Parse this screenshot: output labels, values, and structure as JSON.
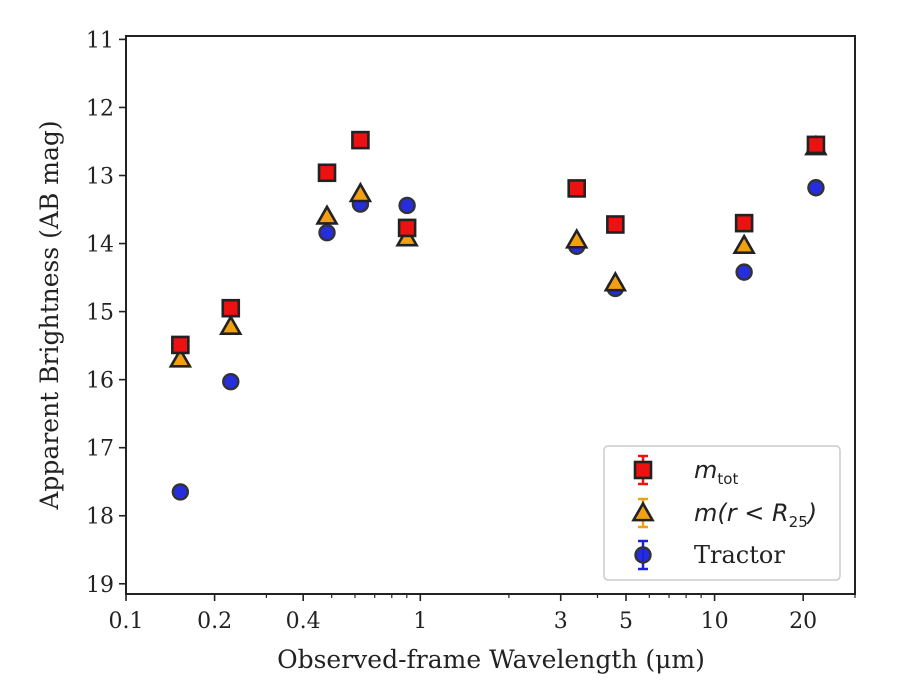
{
  "chart_data": {
    "type": "scatter",
    "xlabel": "Observed-frame Wavelength (μm)",
    "ylabel": "Apparent Brightness (AB mag)",
    "x_scale": "log",
    "xlim": [
      0.1,
      30
    ],
    "ylim": [
      19.15,
      10.95
    ],
    "y_inverted": true,
    "x_ticks": [
      0.1,
      0.2,
      0.4,
      1,
      3,
      5,
      10,
      20
    ],
    "x_tick_labels": [
      "0.1",
      "0.2",
      "0.4",
      "1",
      "3",
      "5",
      "10",
      "20"
    ],
    "y_ticks": [
      11,
      12,
      13,
      14,
      15,
      16,
      17,
      18,
      19
    ],
    "y_tick_labels": [
      "11",
      "12",
      "13",
      "14",
      "15",
      "16",
      "17",
      "18",
      "19"
    ],
    "grid": false,
    "legend_position": "bottom-right",
    "series": [
      {
        "name": "m_tot",
        "marker": "square",
        "color": "#ee1111",
        "points": [
          {
            "x": 0.153,
            "y": 15.49
          },
          {
            "x": 0.227,
            "y": 14.95
          },
          {
            "x": 0.482,
            "y": 12.96
          },
          {
            "x": 0.626,
            "y": 12.48
          },
          {
            "x": 0.902,
            "y": 13.77
          },
          {
            "x": 3.4,
            "y": 13.19
          },
          {
            "x": 4.6,
            "y": 13.72
          },
          {
            "x": 12.6,
            "y": 13.7
          },
          {
            "x": 22.1,
            "y": 12.55
          }
        ]
      },
      {
        "name": "m(r < R25)",
        "marker": "triangle",
        "color": "#f0a010",
        "points": [
          {
            "x": 0.153,
            "y": 15.7
          },
          {
            "x": 0.227,
            "y": 15.22
          },
          {
            "x": 0.482,
            "y": 13.6
          },
          {
            "x": 0.626,
            "y": 13.27
          },
          {
            "x": 0.902,
            "y": 13.92
          },
          {
            "x": 3.4,
            "y": 13.95
          },
          {
            "x": 4.6,
            "y": 14.58
          },
          {
            "x": 12.6,
            "y": 14.03
          },
          {
            "x": 22.1,
            "y": 12.58
          }
        ]
      },
      {
        "name": "Tractor",
        "marker": "circle",
        "color": "#1a22dd",
        "points": [
          {
            "x": 0.153,
            "y": 17.65
          },
          {
            "x": 0.227,
            "y": 16.03
          },
          {
            "x": 0.482,
            "y": 13.84
          },
          {
            "x": 0.626,
            "y": 13.42
          },
          {
            "x": 0.902,
            "y": 13.44
          },
          {
            "x": 3.4,
            "y": 14.04
          },
          {
            "x": 4.6,
            "y": 14.66
          },
          {
            "x": 12.6,
            "y": 14.42
          },
          {
            "x": 22.1,
            "y": 13.18
          }
        ]
      }
    ],
    "legend": {
      "mtot_main": "m",
      "mtot_sub": "tot",
      "mr_main": "m(r < R",
      "mr_sub": "25",
      "mr_close": ")",
      "tractor": "Tractor"
    }
  }
}
